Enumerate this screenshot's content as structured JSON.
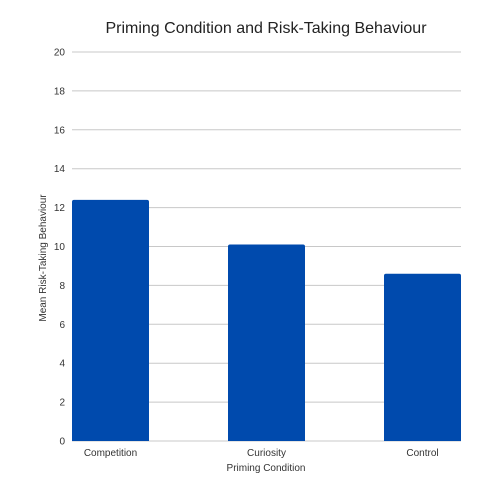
{
  "chart_data": {
    "type": "bar",
    "title": "Priming Condition and Risk-Taking Behaviour",
    "xlabel": "Priming Condition",
    "ylabel": "Mean Risk-Taking Behaviour",
    "categories": [
      "Competition",
      "Curiosity",
      "Control"
    ],
    "values": [
      12.4,
      10.1,
      8.6
    ],
    "ylim": [
      0,
      20
    ],
    "yticks": [
      0,
      2,
      4,
      6,
      8,
      10,
      12,
      14,
      16,
      18,
      20
    ],
    "grid": true,
    "legend": "none",
    "bar_color": "#004aad",
    "grid_color": "#c8c8c8"
  }
}
